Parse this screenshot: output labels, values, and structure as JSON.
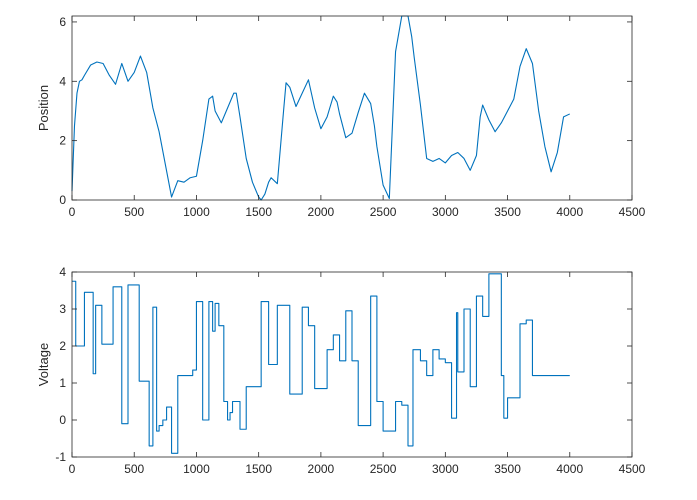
{
  "chart_data": [
    {
      "type": "line",
      "title": "",
      "xlabel": "",
      "ylabel": "Position",
      "xlim": [
        0,
        4500
      ],
      "ylim": [
        0,
        6.2
      ],
      "xticks": [
        0,
        500,
        1000,
        1500,
        2000,
        2500,
        3000,
        3500,
        4000,
        4500
      ],
      "yticks": [
        0,
        2,
        4,
        6
      ],
      "grid": false,
      "color": "#0072BD",
      "series": [
        {
          "x": [
            0,
            20,
            40,
            60,
            80,
            100,
            150,
            200,
            250,
            300,
            350,
            400,
            450,
            500,
            550,
            600,
            650,
            700,
            750,
            800,
            850,
            900,
            950,
            1000,
            1050,
            1100,
            1130,
            1150,
            1200,
            1250,
            1300,
            1320,
            1350,
            1400,
            1450,
            1500,
            1520,
            1550,
            1580,
            1600,
            1650,
            1700,
            1720,
            1750,
            1800,
            1850,
            1900,
            1950,
            2000,
            2050,
            2100,
            2130,
            2150,
            2200,
            2250,
            2300,
            2350,
            2400,
            2430,
            2450,
            2500,
            2550,
            2600,
            2650,
            2700,
            2730,
            2750,
            2800,
            2850,
            2900,
            2950,
            3000,
            3050,
            3100,
            3150,
            3200,
            3250,
            3280,
            3300,
            3350,
            3400,
            3450,
            3500,
            3550,
            3600,
            3650,
            3700,
            3750,
            3800,
            3850,
            3900,
            3950,
            4000
          ],
          "y": [
            0.3,
            2.5,
            3.6,
            4.0,
            4.05,
            4.2,
            4.55,
            4.65,
            4.6,
            4.2,
            3.9,
            4.6,
            4.0,
            4.3,
            4.85,
            4.3,
            3.1,
            2.3,
            1.2,
            0.1,
            0.65,
            0.6,
            0.75,
            0.8,
            2.0,
            3.4,
            3.5,
            3.0,
            2.6,
            3.1,
            3.6,
            3.6,
            2.8,
            1.4,
            0.6,
            0.1,
            0.0,
            0.2,
            0.6,
            0.75,
            0.55,
            3.0,
            3.95,
            3.8,
            3.15,
            3.6,
            4.05,
            3.1,
            2.4,
            2.8,
            3.5,
            3.3,
            2.9,
            2.1,
            2.25,
            2.95,
            3.6,
            3.25,
            2.5,
            1.8,
            0.5,
            0.05,
            5.0,
            6.2,
            6.2,
            5.5,
            4.8,
            3.2,
            1.4,
            1.3,
            1.4,
            1.25,
            1.5,
            1.6,
            1.4,
            1.0,
            1.5,
            2.8,
            3.2,
            2.7,
            2.3,
            2.6,
            3.0,
            3.4,
            4.5,
            5.1,
            4.6,
            3.0,
            1.8,
            0.95,
            1.6,
            2.8,
            2.9
          ]
        }
      ]
    },
    {
      "type": "line",
      "title": "",
      "xlabel": "",
      "ylabel": "Voltage",
      "xlim": [
        0,
        4500
      ],
      "ylim": [
        -1,
        4
      ],
      "xticks": [
        0,
        500,
        1000,
        1500,
        2000,
        2500,
        3000,
        3500,
        4000,
        4500
      ],
      "yticks": [
        -1,
        0,
        1,
        2,
        3,
        4
      ],
      "grid": false,
      "color": "#0072BD",
      "step": true,
      "series": [
        {
          "x": [
            0,
            30,
            100,
            170,
            190,
            240,
            330,
            400,
            450,
            540,
            620,
            650,
            680,
            700,
            730,
            760,
            800,
            850,
            900,
            970,
            1000,
            1050,
            1100,
            1130,
            1150,
            1180,
            1220,
            1250,
            1270,
            1290,
            1320,
            1350,
            1400,
            1450,
            1520,
            1580,
            1650,
            1700,
            1750,
            1800,
            1850,
            1900,
            1950,
            2050,
            2100,
            2150,
            2200,
            2250,
            2300,
            2350,
            2400,
            2450,
            2500,
            2600,
            2650,
            2700,
            2720,
            2740,
            2800,
            2850,
            2900,
            2950,
            3000,
            3050,
            3090,
            3100,
            3150,
            3200,
            3250,
            3300,
            3350,
            3400,
            3450,
            3470,
            3500,
            3540,
            3600,
            3650,
            3700,
            3750,
            3800,
            3850,
            3900,
            3950,
            4000
          ],
          "y": [
            3.75,
            2.0,
            3.45,
            1.25,
            3.1,
            2.05,
            3.6,
            -0.1,
            3.65,
            1.05,
            -0.7,
            3.05,
            -0.3,
            -0.15,
            0.0,
            0.35,
            -0.9,
            1.2,
            1.2,
            1.35,
            3.2,
            0.0,
            3.2,
            2.4,
            3.15,
            2.55,
            0.5,
            0.0,
            0.2,
            0.5,
            0.5,
            -0.25,
            0.9,
            0.9,
            3.2,
            1.5,
            3.1,
            3.1,
            0.7,
            0.7,
            3.05,
            2.55,
            0.85,
            1.9,
            2.3,
            1.6,
            2.95,
            1.6,
            -0.15,
            -0.15,
            3.35,
            0.5,
            -0.3,
            0.5,
            0.4,
            -0.7,
            -0.7,
            1.9,
            1.6,
            1.2,
            1.9,
            1.65,
            1.55,
            0.05,
            2.9,
            1.3,
            3.0,
            0.9,
            3.35,
            2.8,
            3.95,
            3.95,
            1.2,
            0.05,
            0.6,
            0.6,
            2.6,
            2.7,
            1.2,
            1.2,
            1.2,
            1.2,
            1.2,
            1.2,
            1.2
          ],
          "x_end": 4000
        }
      ]
    }
  ]
}
